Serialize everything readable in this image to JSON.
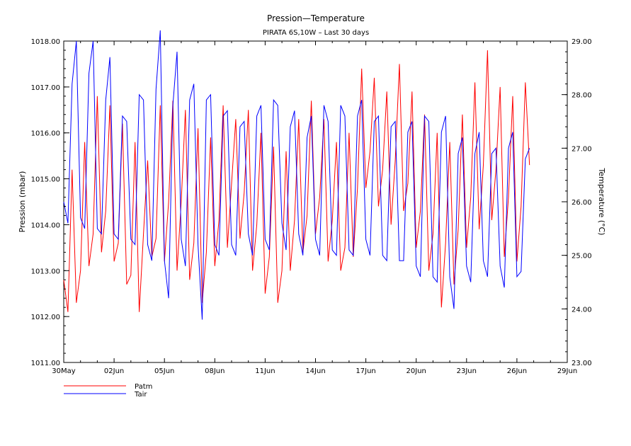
{
  "chart_data": {
    "type": "line",
    "title": "Pression—Temperature",
    "subtitle": "PIRATA 6S,10W – Last 30 days",
    "x_ticks": [
      "30May",
      "02Jun",
      "05Jun",
      "08Jun",
      "11Jun",
      "14Jun",
      "17Jun",
      "20Jun",
      "23Jun",
      "26Jun",
      "29Jun"
    ],
    "xlim_days": [
      0,
      30
    ],
    "y_left": {
      "label": "Pression (mbar)",
      "ylim": [
        1011.0,
        1018.0
      ],
      "ticks": [
        "1011.00",
        "1012.00",
        "1013.00",
        "1014.00",
        "1015.00",
        "1016.00",
        "1017.00",
        "1018.00"
      ]
    },
    "y_right": {
      "label": "Temperature (°C)",
      "ylim": [
        23.0,
        29.0
      ],
      "ticks": [
        "23.00",
        "24.00",
        "25.00",
        "26.00",
        "27.00",
        "28.00",
        "29.00"
      ]
    },
    "series": [
      {
        "name": "Patm",
        "color": "#ff0000",
        "axis": "left",
        "x": [
          0,
          0.25,
          0.5,
          0.75,
          1,
          1.25,
          1.5,
          1.75,
          2,
          2.25,
          2.5,
          2.75,
          3,
          3.25,
          3.5,
          3.75,
          4,
          4.25,
          4.5,
          4.75,
          5,
          5.25,
          5.5,
          5.75,
          6,
          6.25,
          6.5,
          6.75,
          7,
          7.25,
          7.5,
          7.75,
          8,
          8.25,
          8.5,
          8.75,
          9,
          9.25,
          9.5,
          9.75,
          10,
          10.25,
          10.5,
          10.75,
          11,
          11.25,
          11.5,
          11.75,
          12,
          12.25,
          12.5,
          12.75,
          13,
          13.25,
          13.5,
          13.75,
          14,
          14.25,
          14.5,
          14.75,
          15,
          15.25,
          15.5,
          15.75,
          16,
          16.25,
          16.5,
          16.75,
          17,
          17.25,
          17.5,
          17.75,
          18,
          18.25,
          18.5,
          18.75,
          19,
          19.25,
          19.5,
          19.75,
          20,
          20.25,
          20.5,
          20.75,
          21,
          21.25,
          21.5,
          21.75,
          22,
          22.25,
          22.5,
          22.75,
          23,
          23.25,
          23.5,
          23.75,
          24,
          24.25,
          24.5,
          24.75,
          25,
          25.25,
          25.5,
          25.75,
          26,
          26.25,
          26.5,
          26.75,
          27,
          27.25,
          27.5,
          27.75
        ],
        "values": [
          1012.8,
          1012.1,
          1015.2,
          1012.3,
          1013.0,
          1015.8,
          1013.1,
          1013.8,
          1016.8,
          1013.4,
          1014.3,
          1016.6,
          1013.2,
          1013.6,
          1016.2,
          1012.7,
          1012.9,
          1015.8,
          1012.1,
          1013.8,
          1015.4,
          1013.3,
          1013.7,
          1016.6,
          1013.2,
          1014.5,
          1016.7,
          1013.0,
          1014.5,
          1016.5,
          1012.8,
          1013.6,
          1016.1,
          1012.3,
          1013.4,
          1015.9,
          1013.1,
          1014.1,
          1016.6,
          1013.5,
          1014.9,
          1016.3,
          1013.7,
          1014.7,
          1016.5,
          1013.0,
          1014.0,
          1016.0,
          1012.5,
          1013.3,
          1015.7,
          1012.3,
          1013.0,
          1015.6,
          1013.0,
          1014.1,
          1016.3,
          1013.4,
          1014.2,
          1016.7,
          1013.8,
          1014.6,
          1016.3,
          1013.2,
          1014.1,
          1015.8,
          1013.0,
          1013.5,
          1016.0,
          1013.3,
          1014.8,
          1017.4,
          1014.8,
          1015.6,
          1017.2,
          1014.4,
          1015.2,
          1016.9,
          1014.0,
          1015.4,
          1017.5,
          1014.3,
          1014.9,
          1016.9,
          1013.5,
          1014.3,
          1016.4,
          1013.0,
          1013.8,
          1016.0,
          1012.2,
          1013.6,
          1015.8,
          1012.7,
          1013.9,
          1016.4,
          1013.5,
          1014.6,
          1017.1,
          1013.9,
          1015.3,
          1017.8,
          1014.1,
          1015.2,
          1017.0,
          1013.3,
          1014.6,
          1016.8,
          1013.2,
          1014.4,
          1017.1,
          1015.3
        ]
      },
      {
        "name": "Tair",
        "color": "#0000ff",
        "axis": "right",
        "x": [
          0,
          0.25,
          0.5,
          0.75,
          1,
          1.25,
          1.5,
          1.75,
          2,
          2.25,
          2.5,
          2.75,
          3,
          3.25,
          3.5,
          3.75,
          4,
          4.25,
          4.5,
          4.75,
          5,
          5.25,
          5.5,
          5.75,
          6,
          6.25,
          6.5,
          6.75,
          7,
          7.25,
          7.5,
          7.75,
          8,
          8.25,
          8.5,
          8.75,
          9,
          9.25,
          9.5,
          9.75,
          10,
          10.25,
          10.5,
          10.75,
          11,
          11.25,
          11.5,
          11.75,
          12,
          12.25,
          12.5,
          12.75,
          13,
          13.25,
          13.5,
          13.75,
          14,
          14.25,
          14.5,
          14.75,
          15,
          15.25,
          15.5,
          15.75,
          16,
          16.25,
          16.5,
          16.75,
          17,
          17.25,
          17.5,
          17.75,
          18,
          18.25,
          18.5,
          18.75,
          19,
          19.25,
          19.5,
          19.75,
          20,
          20.25,
          20.5,
          20.75,
          21,
          21.25,
          21.5,
          21.75,
          22,
          22.25,
          22.5,
          22.75,
          23,
          23.25,
          23.5,
          23.75,
          24,
          24.25,
          24.5,
          24.75,
          25,
          25.25,
          25.5,
          25.75,
          26,
          26.25,
          26.5,
          26.75,
          27,
          27.25,
          27.5,
          27.75
        ],
        "values": [
          26.0,
          25.6,
          28.2,
          29.0,
          25.7,
          25.5,
          28.4,
          29.0,
          25.5,
          25.4,
          27.9,
          28.7,
          25.4,
          25.3,
          27.6,
          27.5,
          25.3,
          25.2,
          28.0,
          27.9,
          25.2,
          24.9,
          28.1,
          29.2,
          24.9,
          24.2,
          27.8,
          28.8,
          25.3,
          24.8,
          27.9,
          28.2,
          25.2,
          23.8,
          27.9,
          28.0,
          25.2,
          25.0,
          27.6,
          27.7,
          25.2,
          25.0,
          27.4,
          27.5,
          25.4,
          25.0,
          27.6,
          27.8,
          25.3,
          25.1,
          27.9,
          27.8,
          25.6,
          25.1,
          27.4,
          27.7,
          25.4,
          25.0,
          27.2,
          27.6,
          25.3,
          25.0,
          27.8,
          27.5,
          25.1,
          25.0,
          27.8,
          27.6,
          25.1,
          25.0,
          27.6,
          27.9,
          25.3,
          25.0,
          27.5,
          27.6,
          25.0,
          24.9,
          27.4,
          27.5,
          24.9,
          24.9,
          27.3,
          27.5,
          24.8,
          24.6,
          27.6,
          27.5,
          24.6,
          24.5,
          27.3,
          27.6,
          24.6,
          24.0,
          26.9,
          27.2,
          24.8,
          24.5,
          26.9,
          27.3,
          24.9,
          24.6,
          26.9,
          27.0,
          24.8,
          24.4,
          27.0,
          27.3,
          24.6,
          24.7,
          26.8,
          27.0
        ]
      }
    ],
    "legend": [
      {
        "name": "Patm",
        "color": "#ff0000"
      },
      {
        "name": "Tair",
        "color": "#0000ff"
      }
    ]
  }
}
